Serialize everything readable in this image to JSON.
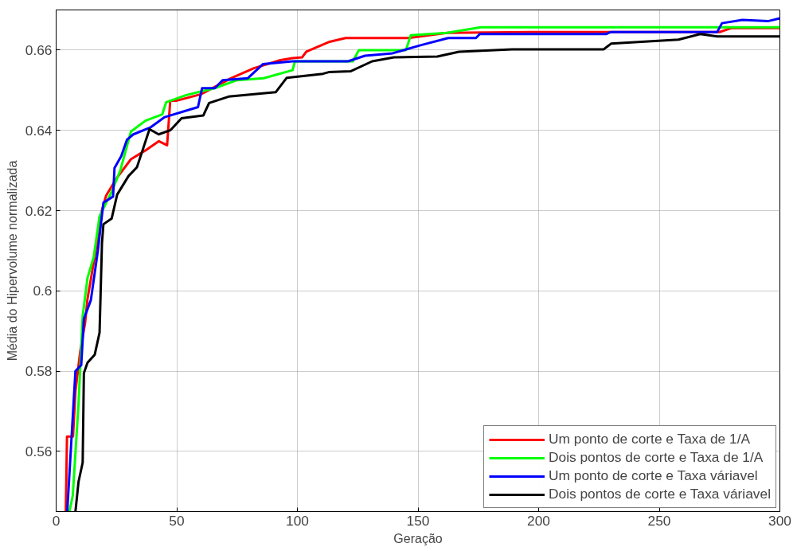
{
  "chart_data": {
    "type": "line",
    "xlabel": "Geração",
    "ylabel": "Média do Hipervolume normalizada",
    "xlim": [
      0,
      300
    ],
    "ylim": [
      0.545,
      0.67
    ],
    "xticks": [
      0,
      50,
      100,
      150,
      200,
      250,
      300
    ],
    "yticks": [
      0.56,
      0.58,
      0.6,
      0.62,
      0.64,
      0.66
    ],
    "grid": true,
    "legend": "bottom right",
    "line_style": "solid",
    "series": [
      {
        "name": "Um ponto de corte e Taxa de 1/A",
        "color": "#ff0000",
        "x": [
          4,
          4.5,
          7,
          8,
          9,
          10,
          12,
          13,
          15,
          17,
          18,
          20.7,
          25,
          31,
          37,
          42.6,
          46,
          47.3,
          50,
          60,
          72.6,
          82,
          93,
          98,
          102,
          103.7,
          113,
          120,
          146,
          162,
          197,
          275,
          280,
          300
        ],
        "values": [
          0.545,
          0.5637,
          0.5637,
          0.575,
          0.58,
          0.585,
          0.592,
          0.598,
          0.605,
          0.612,
          0.618,
          0.6237,
          0.628,
          0.6328,
          0.635,
          0.6373,
          0.6363,
          0.6474,
          0.6474,
          0.649,
          0.653,
          0.6555,
          0.6575,
          0.658,
          0.6582,
          0.6596,
          0.662,
          0.663,
          0.663,
          0.6643,
          0.6645,
          0.6645,
          0.6655,
          0.6655
        ]
      },
      {
        "name": "Dois pontos de corte e Taxa de 1/A",
        "color": "#00ff00",
        "x": [
          5.5,
          6.9,
          9.3,
          11,
          13,
          15.6,
          18,
          23,
          26.6,
          31,
          37,
          44,
          45.6,
          54,
          65.7,
          75,
          86,
          98,
          99,
          123,
          125.5,
          145,
          147,
          162,
          176,
          300
        ],
        "values": [
          0.545,
          0.549,
          0.572,
          0.5937,
          0.6032,
          0.6085,
          0.6186,
          0.6247,
          0.63,
          0.6397,
          0.6424,
          0.644,
          0.647,
          0.6488,
          0.6505,
          0.6525,
          0.653,
          0.655,
          0.6572,
          0.6572,
          0.66,
          0.66,
          0.6637,
          0.6643,
          0.6657,
          0.6657
        ]
      },
      {
        "name": "Um ponto de corte e Taxa váriavel",
        "color": "#0000ff",
        "x": [
          4.6,
          8,
          10.4,
          11.5,
          14.4,
          17.3,
          19.6,
          23.6,
          24.2,
          27,
          29.4,
          32,
          39,
          45,
          58.8,
          60.5,
          65.8,
          69,
          79.5,
          85.7,
          98,
          121,
          128,
          139.5,
          151,
          162.5,
          174,
          175.6,
          228,
          230,
          274,
          276,
          284.5,
          295,
          300
        ],
        "values": [
          0.545,
          0.58,
          0.5815,
          0.593,
          0.5977,
          0.61,
          0.622,
          0.6235,
          0.6306,
          0.6336,
          0.6377,
          0.639,
          0.6407,
          0.6433,
          0.6458,
          0.6505,
          0.6505,
          0.6525,
          0.653,
          0.6565,
          0.6572,
          0.6572,
          0.6586,
          0.6592,
          0.6612,
          0.663,
          0.663,
          0.664,
          0.664,
          0.6645,
          0.6645,
          0.6667,
          0.6675,
          0.6672,
          0.6679
        ]
      },
      {
        "name": "Dois pontos de corte e Taxa váriavel",
        "color": "#000000",
        "x": [
          8,
          9.3,
          11,
          11.5,
          13,
          16,
          18,
          19,
          19.6,
          23,
          25.3,
          30,
          33.5,
          36.3,
          38.7,
          42.5,
          47.3,
          52,
          61,
          63.4,
          71.5,
          91,
          95.6,
          110.6,
          113,
          122,
          131,
          140,
          158,
          167,
          189,
          227,
          230,
          258,
          267,
          274,
          300
        ],
        "values": [
          0.545,
          0.5525,
          0.5572,
          0.5795,
          0.5821,
          0.5841,
          0.5896,
          0.6119,
          0.6166,
          0.618,
          0.624,
          0.6286,
          0.6308,
          0.6359,
          0.6403,
          0.639,
          0.64,
          0.643,
          0.6437,
          0.6468,
          0.6484,
          0.6495,
          0.6531,
          0.6541,
          0.6545,
          0.6547,
          0.6572,
          0.6582,
          0.6584,
          0.6596,
          0.6602,
          0.6602,
          0.6616,
          0.6626,
          0.664,
          0.6634,
          0.6634
        ]
      }
    ]
  }
}
